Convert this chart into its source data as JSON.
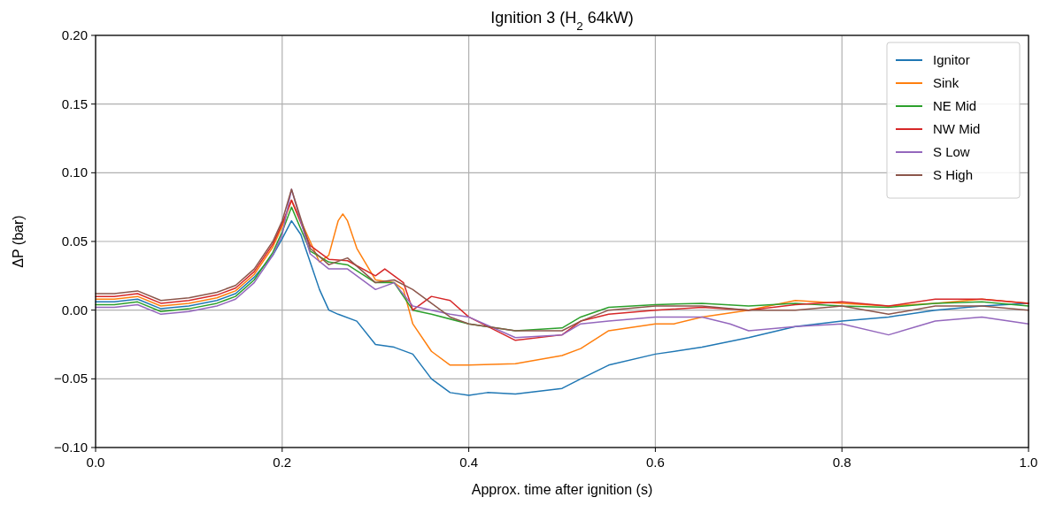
{
  "chart_data": {
    "type": "line",
    "title": "Ignition 3 (H$_{2}$ 64kW)",
    "xlabel": "Approx. time after ignition (s)",
    "ylabel": "ΔP (bar)",
    "xlim": [
      0,
      1
    ],
    "ylim": [
      -0.1,
      0.2
    ],
    "xticks": [
      {
        "value": 0,
        "label": "0.0"
      },
      {
        "value": 0.2,
        "label": "0.2"
      },
      {
        "value": 0.4,
        "label": "0.4"
      },
      {
        "value": 0.6,
        "label": "0.6"
      },
      {
        "value": 0.8,
        "label": "0.8"
      },
      {
        "value": 1,
        "label": "1.0"
      }
    ],
    "yticks": [
      {
        "value": -0.1,
        "label": "−0.10"
      },
      {
        "value": -0.05,
        "label": "−0.05"
      },
      {
        "value": 0,
        "label": "0.00"
      },
      {
        "value": 0.05,
        "label": "0.05"
      },
      {
        "value": 0.1,
        "label": "0.10"
      },
      {
        "value": 0.15,
        "label": "0.15"
      },
      {
        "value": 0.2,
        "label": "0.20"
      }
    ],
    "grid": true,
    "legend": "top right",
    "line_style": "solid",
    "marker": "none",
    "series": [
      {
        "name": "Ignitor",
        "color": "#1f77b4",
        "x": [
          0,
          0.02,
          0.045,
          0.07,
          0.1,
          0.13,
          0.15,
          0.17,
          0.19,
          0.2,
          0.21,
          0.22,
          0.23,
          0.24,
          0.25,
          0.26,
          0.28,
          0.3,
          0.32,
          0.34,
          0.36,
          0.38,
          0.4,
          0.42,
          0.45,
          0.5,
          0.52,
          0.55,
          0.6,
          0.65,
          0.7,
          0.75,
          0.8,
          0.85,
          0.9,
          0.95,
          1.0
        ],
        "values": [
          0.006,
          0.006,
          0.008,
          0.001,
          0.003,
          0.007,
          0.012,
          0.024,
          0.04,
          0.052,
          0.065,
          0.055,
          0.035,
          0.015,
          0,
          -0.003,
          -0.008,
          -0.025,
          -0.027,
          -0.032,
          -0.05,
          -0.06,
          -0.062,
          -0.06,
          -0.061,
          -0.057,
          -0.05,
          -0.04,
          -0.032,
          -0.027,
          -0.02,
          -0.012,
          -0.008,
          -0.005,
          0,
          0.003,
          0.005
        ]
      },
      {
        "name": "Sink",
        "color": "#ff7f0e",
        "x": [
          0,
          0.02,
          0.045,
          0.07,
          0.1,
          0.13,
          0.15,
          0.17,
          0.19,
          0.2,
          0.21,
          0.23,
          0.24,
          0.25,
          0.26,
          0.265,
          0.27,
          0.28,
          0.3,
          0.32,
          0.33,
          0.34,
          0.36,
          0.38,
          0.4,
          0.45,
          0.5,
          0.52,
          0.55,
          0.6,
          0.62,
          0.65,
          0.7,
          0.75,
          0.8,
          0.85,
          0.9,
          0.95,
          1.0
        ],
        "values": [
          0.008,
          0.008,
          0.01,
          0.003,
          0.005,
          0.009,
          0.014,
          0.026,
          0.046,
          0.061,
          0.08,
          0.05,
          0.035,
          0.04,
          0.065,
          0.07,
          0.065,
          0.045,
          0.022,
          0.02,
          0.015,
          -0.01,
          -0.03,
          -0.04,
          -0.04,
          -0.039,
          -0.033,
          -0.028,
          -0.015,
          -0.01,
          -0.01,
          -0.005,
          0,
          0.007,
          0.005,
          0.003,
          0.005,
          0.008,
          0.005
        ]
      },
      {
        "name": "NE Mid",
        "color": "#2ca02c",
        "x": [
          0,
          0.02,
          0.045,
          0.07,
          0.1,
          0.13,
          0.15,
          0.17,
          0.19,
          0.2,
          0.21,
          0.23,
          0.25,
          0.27,
          0.3,
          0.32,
          0.34,
          0.36,
          0.4,
          0.45,
          0.5,
          0.52,
          0.55,
          0.6,
          0.65,
          0.7,
          0.75,
          0.8,
          0.85,
          0.9,
          0.95,
          1.0
        ],
        "values": [
          0.004,
          0.004,
          0.006,
          -0.001,
          0.001,
          0.005,
          0.01,
          0.022,
          0.042,
          0.057,
          0.075,
          0.043,
          0.035,
          0.033,
          0.02,
          0.02,
          0,
          -0.003,
          -0.01,
          -0.015,
          -0.013,
          -0.005,
          0.002,
          0.004,
          0.005,
          0.003,
          0.005,
          0.003,
          0.002,
          0.005,
          0.006,
          0.003
        ]
      },
      {
        "name": "NW Mid",
        "color": "#d62728",
        "x": [
          0,
          0.02,
          0.045,
          0.07,
          0.1,
          0.13,
          0.15,
          0.17,
          0.19,
          0.2,
          0.21,
          0.23,
          0.25,
          0.27,
          0.3,
          0.31,
          0.33,
          0.34,
          0.36,
          0.38,
          0.4,
          0.45,
          0.5,
          0.52,
          0.55,
          0.6,
          0.65,
          0.7,
          0.75,
          0.8,
          0.85,
          0.9,
          0.95,
          1.0
        ],
        "values": [
          0.01,
          0.01,
          0.012,
          0.005,
          0.007,
          0.011,
          0.016,
          0.028,
          0.048,
          0.063,
          0.08,
          0.047,
          0.037,
          0.036,
          0.025,
          0.03,
          0.02,
          0,
          0.01,
          0.007,
          -0.005,
          -0.022,
          -0.018,
          -0.008,
          -0.003,
          0,
          0.002,
          0,
          0.004,
          0.006,
          0.003,
          0.008,
          0.008,
          0.005
        ]
      },
      {
        "name": "S Low",
        "color": "#9467bd",
        "x": [
          0,
          0.02,
          0.045,
          0.07,
          0.1,
          0.13,
          0.15,
          0.17,
          0.19,
          0.2,
          0.21,
          0.23,
          0.25,
          0.27,
          0.3,
          0.32,
          0.34,
          0.36,
          0.38,
          0.4,
          0.45,
          0.5,
          0.52,
          0.55,
          0.6,
          0.65,
          0.68,
          0.7,
          0.75,
          0.8,
          0.85,
          0.88,
          0.9,
          0.95,
          1.0
        ],
        "values": [
          0.002,
          0.002,
          0.004,
          -0.003,
          -0.001,
          0.003,
          0.008,
          0.02,
          0.04,
          0.055,
          0.088,
          0.041,
          0.03,
          0.03,
          0.015,
          0.02,
          0.003,
          0,
          -0.003,
          -0.005,
          -0.02,
          -0.018,
          -0.01,
          -0.008,
          -0.005,
          -0.005,
          -0.01,
          -0.015,
          -0.012,
          -0.01,
          -0.018,
          -0.012,
          -0.008,
          -0.005,
          -0.01
        ]
      },
      {
        "name": "S High",
        "color": "#8c564b",
        "x": [
          0,
          0.02,
          0.045,
          0.07,
          0.1,
          0.13,
          0.15,
          0.17,
          0.19,
          0.2,
          0.21,
          0.23,
          0.25,
          0.27,
          0.3,
          0.32,
          0.34,
          0.36,
          0.38,
          0.4,
          0.45,
          0.5,
          0.52,
          0.55,
          0.6,
          0.65,
          0.7,
          0.75,
          0.8,
          0.85,
          0.9,
          0.95,
          1.0
        ],
        "values": [
          0.012,
          0.012,
          0.014,
          0.007,
          0.009,
          0.013,
          0.018,
          0.03,
          0.05,
          0.065,
          0.088,
          0.045,
          0.033,
          0.038,
          0.02,
          0.022,
          0.015,
          0.005,
          -0.005,
          -0.01,
          -0.015,
          -0.015,
          -0.008,
          0,
          0.003,
          0.003,
          0,
          0,
          0.003,
          -0.003,
          0.003,
          0.003,
          0
        ]
      }
    ]
  }
}
